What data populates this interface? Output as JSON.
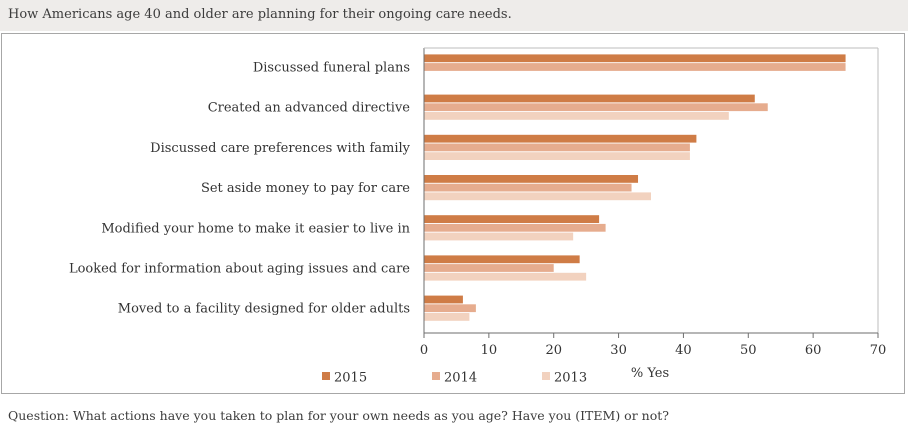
{
  "header": {
    "title": "How Americans age 40 and older are planning for their ongoing care needs."
  },
  "footer": {
    "question": "Question: What actions have you taken to plan for your own needs as you age? Have you (ITEM) or not?"
  },
  "chart_data": {
    "type": "bar",
    "orientation": "horizontal",
    "title": "How Americans age 40 and older are planning for their ongoing care needs.",
    "xlabel": "% Yes",
    "ylabel": "",
    "xlim": [
      0,
      70
    ],
    "xticks": [
      0,
      10,
      20,
      30,
      40,
      50,
      60,
      70
    ],
    "grid": false,
    "legend_position": "bottom",
    "categories": [
      "Discussed funeral plans",
      "Created an advanced directive",
      "Discussed care preferences with family",
      "Set aside money to pay for care",
      "Modified your home to make it easier to live in",
      "Looked for information about aging issues and care",
      "Moved to a facility designed for older adults"
    ],
    "series": [
      {
        "name": "2015",
        "color": "#cf7c46",
        "values": [
          65,
          51,
          42,
          33,
          27,
          24,
          6
        ]
      },
      {
        "name": "2014",
        "color": "#e6ac8e",
        "values": [
          65,
          53,
          41,
          32,
          28,
          20,
          8
        ]
      },
      {
        "name": "2013",
        "color": "#f2d2bf",
        "values": [
          null,
          47,
          41,
          35,
          23,
          25,
          7
        ]
      }
    ]
  }
}
